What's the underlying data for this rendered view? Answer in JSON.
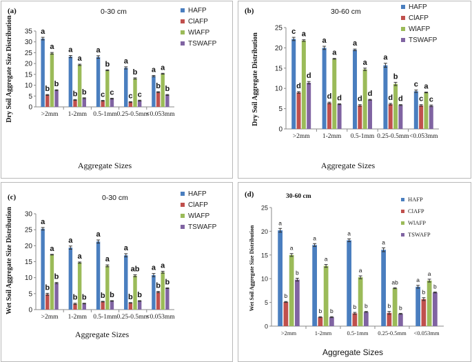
{
  "colors": {
    "HAFP": "#4a7ebf",
    "ClAFP": "#c0504d",
    "WlAFP": "#9bbb59",
    "TSWAFP": "#8064a2"
  },
  "series_names": [
    "HAFP",
    "ClAFP",
    "WlAFP",
    "TSWAFP"
  ],
  "chart_data": [
    {
      "type": "bar",
      "panel_label": "(a)",
      "depth_title": "0-30 cm",
      "ylabel": "Dry Soil Aggregate Size Distribution",
      "xlabel": "Aggregate Sizes",
      "ylim": [
        0,
        35
      ],
      "y_ticks": [
        0,
        5,
        10,
        15,
        20,
        25,
        30,
        35
      ],
      "categories": [
        ">2mm",
        "1-2mm",
        "0.5-1mm",
        "0.25-0.5mm",
        "<0.053mm"
      ],
      "series": [
        {
          "name": "HAFP",
          "values": [
            31.5,
            23.2,
            23.0,
            18.0,
            14.2
          ],
          "errors": [
            0.6,
            0.5,
            0.6,
            0.5,
            0.3
          ],
          "letters": [
            "a",
            "a",
            "a",
            "a",
            "a"
          ]
        },
        {
          "name": "ClAFP",
          "values": [
            5.5,
            3.2,
            2.8,
            2.2,
            6.8
          ],
          "errors": [
            0.2,
            0.2,
            0.2,
            0.2,
            0.2
          ],
          "letters": [
            "b",
            "b",
            "c",
            "c",
            "b"
          ]
        },
        {
          "name": "WlAFP",
          "values": [
            24.7,
            19.4,
            16.9,
            13.1,
            15.3
          ],
          "errors": [
            0.4,
            0.3,
            0.2,
            0.3,
            0.2
          ],
          "letters": [
            "a",
            "a",
            "b",
            "b",
            "a"
          ]
        },
        {
          "name": "TSWAFP",
          "values": [
            7.7,
            4.0,
            3.8,
            2.9,
            5.5
          ],
          "errors": [
            0.2,
            0.2,
            0.2,
            0.2,
            0.2
          ],
          "letters": [
            "b",
            "b",
            "c",
            "c",
            "b"
          ]
        }
      ]
    },
    {
      "type": "bar",
      "panel_label": "(b)",
      "depth_title": "30-60 cm",
      "ylabel": "Dry Soil Aggregate Distribution",
      "xlabel": "Aggregate Sizes",
      "ylim": [
        0,
        25
      ],
      "y_ticks": [
        0,
        5,
        10,
        15,
        20,
        25
      ],
      "categories": [
        ">2mm",
        "1-2mm",
        "0.5-1mm",
        "0.25-0.5mm",
        "<0.053mm"
      ],
      "series": [
        {
          "name": "HAFP",
          "values": [
            22.2,
            20.0,
            19.5,
            15.7,
            9.3
          ],
          "errors": [
            0.4,
            0.4,
            0.2,
            0.5,
            0.3
          ],
          "letters": [
            "c",
            "a",
            "a",
            "a",
            "c"
          ]
        },
        {
          "name": "ClAFP",
          "values": [
            9.0,
            6.4,
            5.8,
            6.1,
            5.8
          ],
          "errors": [
            0.2,
            0.2,
            0.2,
            0.2,
            0.2
          ],
          "letters": [
            "d",
            "d",
            "d",
            "d",
            "c"
          ]
        },
        {
          "name": "WlAFP",
          "values": [
            21.8,
            17.3,
            14.7,
            11.1,
            9.0
          ],
          "errors": [
            0.2,
            0.1,
            0.3,
            0.4,
            0.1
          ],
          "letters": [
            "a",
            "a",
            "a",
            "b",
            "a"
          ]
        },
        {
          "name": "TSWAFP",
          "values": [
            11.4,
            6.1,
            7.2,
            5.9,
            5.7
          ],
          "errors": [
            0.3,
            0.1,
            0.1,
            0.1,
            0.2
          ],
          "letters": [
            "d",
            "d",
            "d",
            "d",
            "c"
          ]
        }
      ]
    },
    {
      "type": "bar",
      "panel_label": "(c)",
      "depth_title": "0-30 cm",
      "ylabel": "Wet Soil Aggregate Size Distribution",
      "xlabel": "Aggregate Sizes",
      "ylim": [
        0,
        30
      ],
      "y_ticks": [
        0,
        5,
        10,
        15,
        20,
        25,
        30
      ],
      "categories": [
        ">2mm",
        "1-2mm",
        "0.5-1mm",
        "0.25-0.5mm",
        "<0.053mm"
      ],
      "series": [
        {
          "name": "HAFP",
          "values": [
            25.3,
            19.4,
            21.3,
            17.0,
            10.8
          ],
          "errors": [
            0.4,
            0.5,
            0.5,
            0.5,
            0.5
          ],
          "letters": [
            "a",
            "a",
            "a",
            "a",
            "a"
          ]
        },
        {
          "name": "ClAFP",
          "values": [
            4.8,
            1.8,
            2.5,
            2.1,
            5.5
          ],
          "errors": [
            0.3,
            0.2,
            0.1,
            0.1,
            0.2
          ],
          "letters": [
            "b",
            "b",
            "b",
            "b",
            "b"
          ]
        },
        {
          "name": "WlAFP",
          "values": [
            17.2,
            14.7,
            13.7,
            10.6,
            11.7
          ],
          "errors": [
            0.1,
            0.2,
            0.3,
            0.3,
            0.3
          ],
          "letters": [
            "a",
            "a",
            "a",
            "ab",
            "a"
          ]
        },
        {
          "name": "TSWAFP",
          "values": [
            8.3,
            1.9,
            2.7,
            2.7,
            6.7
          ],
          "errors": [
            0.2,
            0.1,
            0.1,
            0.1,
            0.1
          ],
          "letters": [
            "b",
            "b",
            "b",
            "b",
            "b"
          ]
        }
      ]
    },
    {
      "type": "bar",
      "panel_label": "(d)",
      "depth_title": "30-60 cm",
      "ylabel": "Wet Soil Aggregate Size Distribution",
      "xlabel": "Aggregate Sizes",
      "ylim": [
        0,
        25
      ],
      "y_ticks": [
        0,
        5,
        10,
        15,
        20,
        25
      ],
      "categories": [
        ">2mm",
        "1-2mm",
        "0.5-1mm",
        "0.25-0.5mm",
        "<0.053mm"
      ],
      "series": [
        {
          "name": "HAFP",
          "values": [
            20.2,
            17.1,
            18.1,
            16.1,
            8.3
          ],
          "errors": [
            0.4,
            0.3,
            0.3,
            0.4,
            0.3
          ],
          "letters": [
            "a",
            "a",
            "a",
            "a",
            "a"
          ]
        },
        {
          "name": "ClAFP",
          "values": [
            5.1,
            1.9,
            2.7,
            2.8,
            5.7
          ],
          "errors": [
            0.1,
            0.1,
            0.2,
            0.3,
            0.3
          ],
          "letters": [
            "b",
            "b",
            "b",
            "b",
            "b"
          ]
        },
        {
          "name": "WlAFP",
          "values": [
            15.0,
            12.7,
            10.3,
            8.0,
            9.6
          ],
          "errors": [
            0.3,
            0.3,
            0.3,
            0.1,
            0.3
          ],
          "letters": [
            "a",
            "a",
            "a",
            "ab",
            "a"
          ]
        },
        {
          "name": "TSWAFP",
          "values": [
            9.8,
            1.9,
            3.0,
            2.6,
            7.1
          ],
          "errors": [
            0.3,
            0.1,
            0.1,
            0.1,
            0.1
          ],
          "letters": [
            "b",
            "b",
            "b",
            "b",
            "b"
          ]
        }
      ]
    }
  ]
}
